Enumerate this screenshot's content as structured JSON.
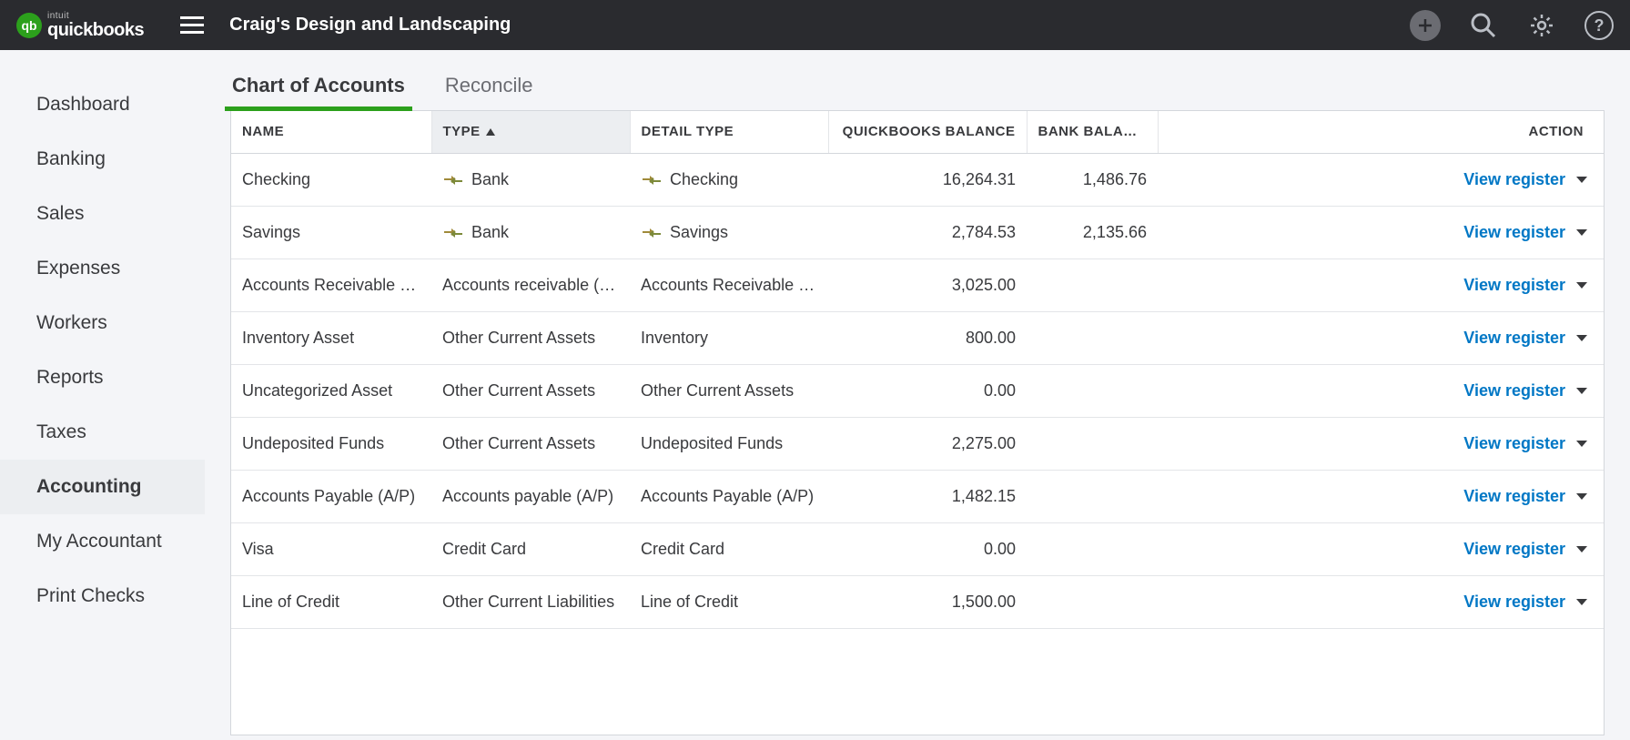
{
  "brand": {
    "intuit_label": "intuit",
    "product_name": "quickbooks",
    "logo_letters": "qb",
    "logo_bg": "#2ca01c"
  },
  "topbar": {
    "company_name": "Craig's Design and Landscaping"
  },
  "sidebar": {
    "items": [
      {
        "label": "Dashboard",
        "active": false
      },
      {
        "label": "Banking",
        "active": false
      },
      {
        "label": "Sales",
        "active": false
      },
      {
        "label": "Expenses",
        "active": false
      },
      {
        "label": "Workers",
        "active": false
      },
      {
        "label": "Reports",
        "active": false
      },
      {
        "label": "Taxes",
        "active": false
      },
      {
        "label": "Accounting",
        "active": true
      },
      {
        "label": "My Accountant",
        "active": false
      },
      {
        "label": "Print Checks",
        "active": false
      }
    ]
  },
  "tabs": [
    {
      "label": "Chart of Accounts",
      "active": true
    },
    {
      "label": "Reconcile",
      "active": false
    }
  ],
  "table": {
    "columns": {
      "name": "NAME",
      "type": "TYPE",
      "detail_type": "DETAIL TYPE",
      "qb_balance": "QUICKBOOKS BALANCE",
      "bank_balance": "BANK BALANCE",
      "action": "ACTION"
    },
    "sorted_column": "type",
    "sort_direction": "asc",
    "action_label": "View register",
    "rows": [
      {
        "name": "Checking",
        "type": "Bank",
        "type_linked": true,
        "detail": "Checking",
        "detail_linked": true,
        "qb": "16,264.31",
        "bank": "1,486.76"
      },
      {
        "name": "Savings",
        "type": "Bank",
        "type_linked": true,
        "detail": "Savings",
        "detail_linked": true,
        "qb": "2,784.53",
        "bank": "2,135.66"
      },
      {
        "name": "Accounts Receivable (A/R)",
        "type": "Accounts receivable (A…",
        "type_linked": false,
        "detail": "Accounts Receivable (…",
        "detail_linked": false,
        "qb": "3,025.00",
        "bank": ""
      },
      {
        "name": "Inventory Asset",
        "type": "Other Current Assets",
        "type_linked": false,
        "detail": "Inventory",
        "detail_linked": false,
        "qb": "800.00",
        "bank": ""
      },
      {
        "name": "Uncategorized Asset",
        "type": "Other Current Assets",
        "type_linked": false,
        "detail": "Other Current Assets",
        "detail_linked": false,
        "qb": "0.00",
        "bank": ""
      },
      {
        "name": "Undeposited Funds",
        "type": "Other Current Assets",
        "type_linked": false,
        "detail": "Undeposited Funds",
        "detail_linked": false,
        "qb": "2,275.00",
        "bank": ""
      },
      {
        "name": "Accounts Payable (A/P)",
        "type": "Accounts payable (A/P)",
        "type_linked": false,
        "detail": "Accounts Payable (A/P)",
        "detail_linked": false,
        "qb": "1,482.15",
        "bank": ""
      },
      {
        "name": "Visa",
        "type": "Credit Card",
        "type_linked": false,
        "detail": "Credit Card",
        "detail_linked": false,
        "qb": "0.00",
        "bank": ""
      },
      {
        "name": "Line of Credit",
        "type": "Other Current Liabilities",
        "type_linked": false,
        "detail": "Line of Credit",
        "detail_linked": false,
        "qb": "1,500.00",
        "bank": ""
      }
    ]
  },
  "colors": {
    "topbar_bg": "#2a2b2f",
    "accent_green": "#2ca01c",
    "link_blue": "#0077c5",
    "body_bg": "#f4f5f8",
    "border": "#d4d7dc"
  }
}
